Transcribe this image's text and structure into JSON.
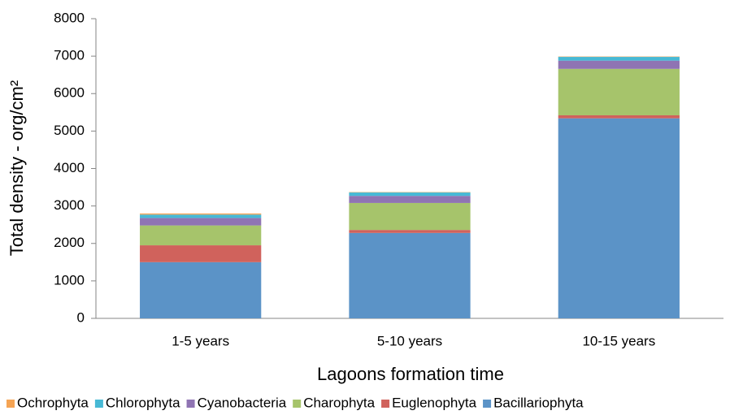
{
  "chart_data": {
    "type": "bar",
    "stacked": true,
    "x_label": "Lagoons formation time",
    "y_label": "Total density - org/cm²",
    "categories": [
      "1-5 years",
      "5-10 years",
      "10-15 years"
    ],
    "series": [
      {
        "name": "Bacillariophyta",
        "color": "#5b93c7",
        "values": [
          1500,
          2280,
          5340
        ]
      },
      {
        "name": "Euglenophyta",
        "color": "#d0625c",
        "values": [
          450,
          80,
          80
        ]
      },
      {
        "name": "Charophyta",
        "color": "#a6c46b",
        "values": [
          530,
          720,
          1240
        ]
      },
      {
        "name": "Cyanobacteria",
        "color": "#8f74b3",
        "values": [
          200,
          190,
          220
        ]
      },
      {
        "name": "Chlorophyta",
        "color": "#47b9d5",
        "values": [
          90,
          90,
          100
        ]
      },
      {
        "name": "Ochrophyta",
        "color": "#f5a454",
        "values": [
          30,
          10,
          10
        ]
      }
    ],
    "ylim": [
      0,
      8000
    ],
    "yticks": [
      0,
      1000,
      2000,
      3000,
      4000,
      5000,
      6000,
      7000,
      8000
    ],
    "legend": "bottom"
  }
}
